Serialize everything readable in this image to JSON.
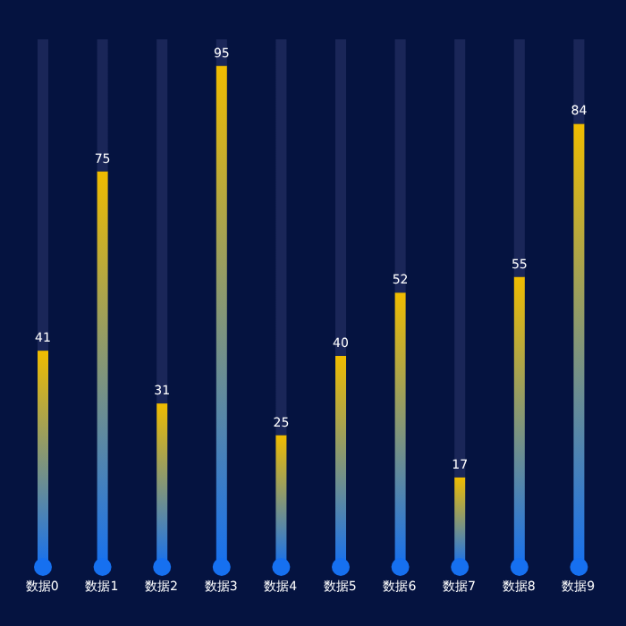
{
  "chart_data": {
    "type": "bar",
    "stacked": true,
    "categories": [
      "数据0",
      "数据1",
      "数据2",
      "数据3",
      "数据4",
      "数据5",
      "数据6",
      "数据7",
      "数据8",
      "数据9"
    ],
    "series": [
      {
        "color": "#f0bc00",
        "values": [
          41,
          75,
          31,
          95,
          25,
          40,
          52,
          17,
          55,
          84
        ],
        "data_labels": true
      },
      {
        "color": "#1a2658",
        "values": [
          59,
          25,
          69,
          5,
          75,
          60,
          48,
          83,
          45,
          16
        ]
      }
    ],
    "ylim": [
      0,
      100
    ],
    "tick_labels": "x"
  }
}
